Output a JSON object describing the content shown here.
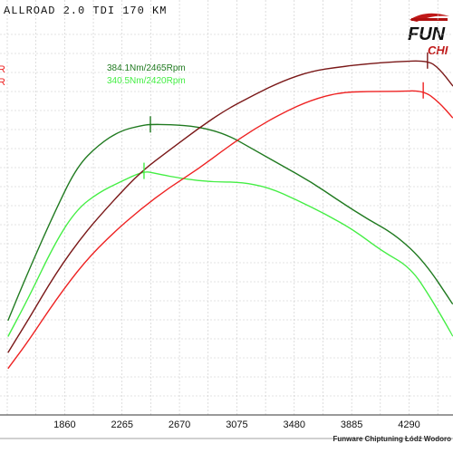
{
  "header": {
    "title": "ALLROAD  2.0 TDI 170 KM"
  },
  "logo": {
    "text_line1": "FUN",
    "text_line2": "CHI"
  },
  "footer": {
    "credit": "Funware Chiptuning Łódź Wodoro"
  },
  "colors": {
    "background": "#ffffff",
    "grid": "#c8c8c8",
    "torque_tuned": "#207a20",
    "torque_stock": "#44ee44",
    "power_tuned": "#7a1818",
    "power_stock": "#ee2222"
  },
  "chart_data": {
    "type": "line",
    "title": "ALLROAD  2.0 TDI 170 KM",
    "xlabel": "",
    "ylabel": "",
    "xlim": [
      1455,
      4600
    ],
    "x_ticks": [
      1860,
      2265,
      2670,
      3075,
      3480,
      3885,
      4290
    ],
    "grid": true,
    "annotations": [
      {
        "text": "384.1Nm/2465Rpm",
        "color": "#207a20"
      },
      {
        "text": "340.5Nm/2420Rpm",
        "color": "#44ee44"
      }
    ],
    "series": [
      {
        "name": "",
        "color": "#207a20",
        "x": [
          1460,
          1600,
          1800,
          1950,
          2100,
          2250,
          2400,
          2465,
          2600,
          2800,
          3000,
          3200,
          3400,
          3600,
          3800,
          4000,
          4200,
          4400,
          4600
        ],
        "y": [
          200,
          245,
          305,
          345,
          365,
          378,
          383,
          384.1,
          384,
          382,
          375,
          360,
          345,
          330,
          312,
          295,
          280,
          255,
          215
        ]
      },
      {
        "name": "",
        "color": "#44ee44",
        "x": [
          1460,
          1600,
          1800,
          1950,
          2100,
          2250,
          2420,
          2500,
          2700,
          2900,
          3100,
          3300,
          3500,
          3700,
          3900,
          4100,
          4300,
          4450,
          4600
        ],
        "y": [
          185,
          220,
          275,
          305,
          320,
          330,
          340.5,
          338,
          333,
          330,
          330,
          325,
          313,
          300,
          285,
          265,
          250,
          220,
          185
        ]
      },
      {
        "name": "",
        "color": "#7a1818",
        "x": [
          1460,
          1600,
          1800,
          2000,
          2200,
          2400,
          2600,
          2800,
          3000,
          3200,
          3400,
          3600,
          3800,
          4000,
          4200,
          4420,
          4500,
          4600
        ],
        "y": [
          170,
          200,
          245,
          282,
          312,
          340,
          360,
          380,
          398,
          412,
          425,
          434,
          438,
          441,
          443,
          444,
          437,
          420
        ]
      },
      {
        "name": "",
        "color": "#ee2222",
        "x": [
          1460,
          1600,
          1800,
          2000,
          2200,
          2400,
          2600,
          2800,
          3000,
          3200,
          3400,
          3600,
          3800,
          4000,
          4200,
          4390,
          4500,
          4600
        ],
        "y": [
          155,
          180,
          220,
          255,
          282,
          305,
          325,
          342,
          362,
          380,
          395,
          407,
          414,
          415,
          415,
          416,
          405,
          390
        ]
      }
    ]
  }
}
